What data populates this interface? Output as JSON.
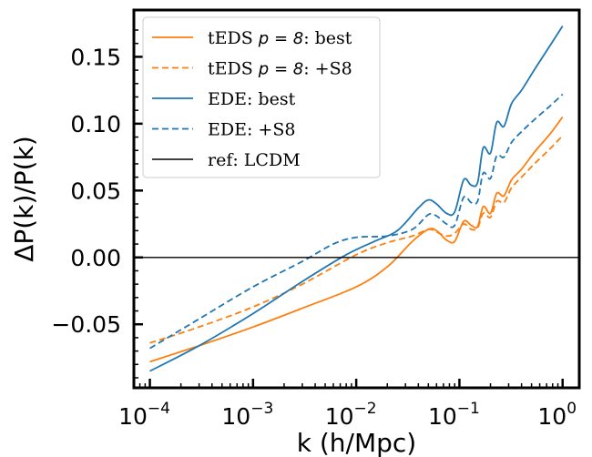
{
  "chart_data": {
    "type": "line",
    "xlabel": "k (h/Mpc)",
    "ylabel": "ΔP(k)/P(k)",
    "xscale": "log",
    "xlim": [
      7e-05,
      1.45
    ],
    "ylim": [
      -0.0975,
      0.185
    ],
    "x_ticks": [
      {
        "base": "10",
        "exp": "−4"
      },
      {
        "base": "10",
        "exp": "−3"
      },
      {
        "base": "10",
        "exp": "−2"
      },
      {
        "base": "10",
        "exp": "−1"
      },
      {
        "base": "10",
        "exp": "0"
      }
    ],
    "y_ticks": [
      "0.15",
      "0.10",
      "0.05",
      "0.00",
      "−0.05"
    ],
    "grid": false,
    "legend_position": "top-left",
    "series": [
      {
        "name": "tEDS p = 8: best",
        "color": "#ff7f0e",
        "style": "solid",
        "points": [
          [
            0.0001,
            -0.078
          ],
          [
            0.0003,
            -0.066
          ],
          [
            0.001,
            -0.052
          ],
          [
            0.003,
            -0.038
          ],
          [
            0.01,
            -0.022
          ],
          [
            0.02,
            -0.007
          ],
          [
            0.035,
            0.012
          ],
          [
            0.05,
            0.021
          ],
          [
            0.06,
            0.02
          ],
          [
            0.075,
            0.013
          ],
          [
            0.09,
            0.012
          ],
          [
            0.11,
            0.027
          ],
          [
            0.13,
            0.024
          ],
          [
            0.15,
            0.023
          ],
          [
            0.17,
            0.038
          ],
          [
            0.2,
            0.033
          ],
          [
            0.23,
            0.048
          ],
          [
            0.27,
            0.046
          ],
          [
            0.32,
            0.058
          ],
          [
            0.4,
            0.066
          ],
          [
            0.55,
            0.08
          ],
          [
            0.75,
            0.092
          ],
          [
            1.0,
            0.105
          ]
        ]
      },
      {
        "name": "tEDS p = 8: +S8",
        "color": "#ff7f0e",
        "style": "dashed",
        "points": [
          [
            0.0001,
            -0.064
          ],
          [
            0.0003,
            -0.052
          ],
          [
            0.001,
            -0.037
          ],
          [
            0.003,
            -0.02
          ],
          [
            0.01,
            0.002
          ],
          [
            0.02,
            0.011
          ],
          [
            0.035,
            0.016
          ],
          [
            0.05,
            0.021
          ],
          [
            0.06,
            0.019
          ],
          [
            0.075,
            0.016
          ],
          [
            0.09,
            0.018
          ],
          [
            0.11,
            0.025
          ],
          [
            0.13,
            0.021
          ],
          [
            0.15,
            0.022
          ],
          [
            0.17,
            0.033
          ],
          [
            0.2,
            0.03
          ],
          [
            0.23,
            0.042
          ],
          [
            0.27,
            0.041
          ],
          [
            0.32,
            0.052
          ],
          [
            0.4,
            0.06
          ],
          [
            0.55,
            0.071
          ],
          [
            0.75,
            0.081
          ],
          [
            1.0,
            0.091
          ]
        ]
      },
      {
        "name": "EDE: best",
        "color": "#1f77b4",
        "style": "solid",
        "points": [
          [
            0.0001,
            -0.085
          ],
          [
            0.0003,
            -0.066
          ],
          [
            0.001,
            -0.042
          ],
          [
            0.003,
            -0.018
          ],
          [
            0.008,
            0.002
          ],
          [
            0.015,
            0.012
          ],
          [
            0.025,
            0.02
          ],
          [
            0.04,
            0.037
          ],
          [
            0.05,
            0.043
          ],
          [
            0.06,
            0.04
          ],
          [
            0.075,
            0.033
          ],
          [
            0.09,
            0.034
          ],
          [
            0.11,
            0.058
          ],
          [
            0.13,
            0.054
          ],
          [
            0.15,
            0.056
          ],
          [
            0.17,
            0.082
          ],
          [
            0.2,
            0.078
          ],
          [
            0.23,
            0.101
          ],
          [
            0.27,
            0.098
          ],
          [
            0.32,
            0.115
          ],
          [
            0.4,
            0.125
          ],
          [
            0.55,
            0.142
          ],
          [
            0.75,
            0.158
          ],
          [
            1.0,
            0.173
          ]
        ]
      },
      {
        "name": "EDE: +S8",
        "color": "#1f77b4",
        "style": "dashed",
        "points": [
          [
            0.0001,
            -0.068
          ],
          [
            0.0003,
            -0.046
          ],
          [
            0.001,
            -0.022
          ],
          [
            0.003,
            -0.003
          ],
          [
            0.006,
            0.01
          ],
          [
            0.01,
            0.015
          ],
          [
            0.02,
            0.016
          ],
          [
            0.035,
            0.021
          ],
          [
            0.05,
            0.032
          ],
          [
            0.06,
            0.031
          ],
          [
            0.075,
            0.025
          ],
          [
            0.09,
            0.024
          ],
          [
            0.11,
            0.045
          ],
          [
            0.13,
            0.041
          ],
          [
            0.15,
            0.042
          ],
          [
            0.17,
            0.063
          ],
          [
            0.2,
            0.059
          ],
          [
            0.23,
            0.076
          ],
          [
            0.27,
            0.075
          ],
          [
            0.32,
            0.086
          ],
          [
            0.4,
            0.094
          ],
          [
            0.55,
            0.104
          ],
          [
            0.75,
            0.113
          ],
          [
            1.0,
            0.122
          ]
        ]
      },
      {
        "name": "ref: LCDM",
        "color": "#000000",
        "style": "solid",
        "points": [
          [
            7e-05,
            0.0
          ],
          [
            1.45,
            0.0
          ]
        ]
      }
    ],
    "legend_entries": [
      {
        "prefix": "tEDS ",
        "math": "p = 8",
        "suffix": ": best"
      },
      {
        "prefix": "tEDS ",
        "math": "p = 8",
        "suffix": ": +S8"
      },
      {
        "prefix": "EDE: best",
        "math": "",
        "suffix": ""
      },
      {
        "prefix": "EDE: +S8",
        "math": "",
        "suffix": ""
      },
      {
        "prefix": "ref: LCDM",
        "math": "",
        "suffix": ""
      }
    ]
  }
}
